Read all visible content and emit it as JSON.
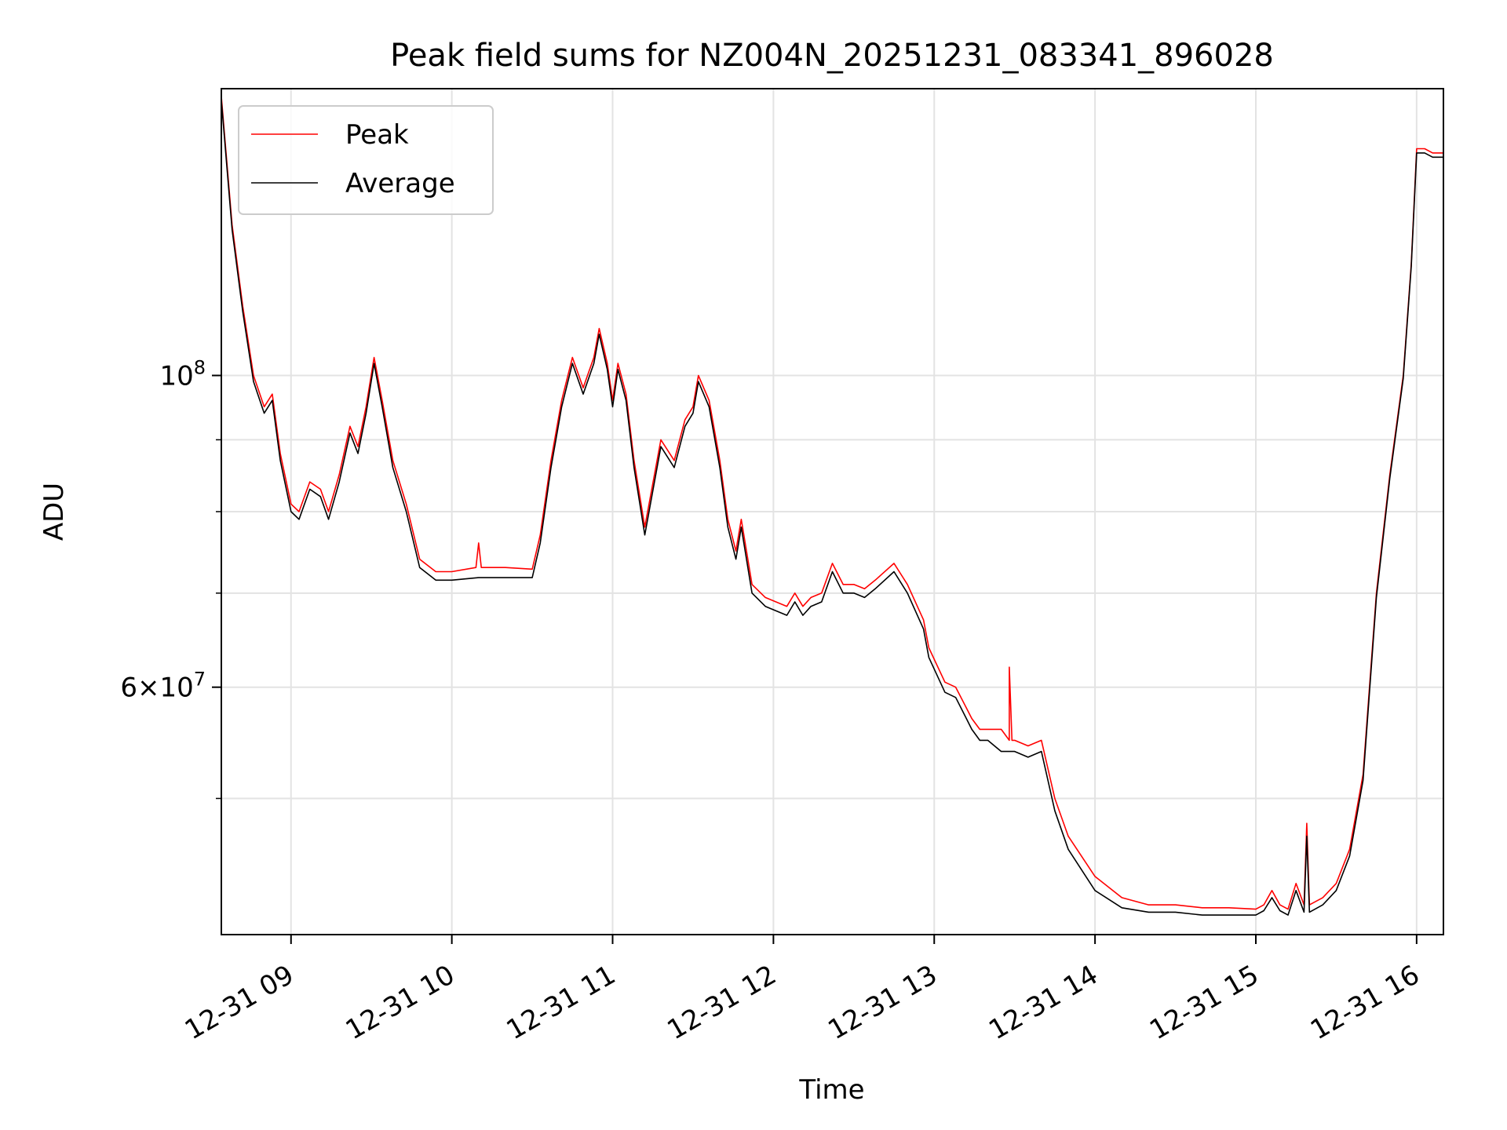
{
  "chart_data": {
    "type": "line",
    "title": "Peak field sums for NZ004N_20251231_083341_896028",
    "xlabel": "Time",
    "ylabel": "ADU",
    "y_scale": "log",
    "grid": true,
    "legend_position": "upper-left",
    "xlim": [
      "2025-12-31 08:34",
      "2025-12-31 16:10"
    ],
    "ylim": [
      40000000,
      160000000
    ],
    "x_ticks": [
      {
        "value": "2025-12-31 09:00",
        "label": "12-31 09"
      },
      {
        "value": "2025-12-31 10:00",
        "label": "12-31 10"
      },
      {
        "value": "2025-12-31 11:00",
        "label": "12-31 11"
      },
      {
        "value": "2025-12-31 12:00",
        "label": "12-31 12"
      },
      {
        "value": "2025-12-31 13:00",
        "label": "12-31 13"
      },
      {
        "value": "2025-12-31 14:00",
        "label": "12-31 14"
      },
      {
        "value": "2025-12-31 15:00",
        "label": "12-31 15"
      },
      {
        "value": "2025-12-31 16:00",
        "label": "12-31 16"
      }
    ],
    "y_major_ticks": [
      {
        "value": 100000000,
        "base": "10",
        "exp": "8",
        "mant": ""
      },
      {
        "value": 60000000,
        "base": "10",
        "exp": "7",
        "mant": "6"
      }
    ],
    "y_minor_ticks": [
      50000000,
      70000000,
      80000000,
      90000000
    ],
    "series": [
      {
        "name": "Peak",
        "color": "#ff0000",
        "x": [
          "2025-12-31 08:34",
          "2025-12-31 08:38",
          "2025-12-31 08:42",
          "2025-12-31 08:46",
          "2025-12-31 08:50",
          "2025-12-31 08:53",
          "2025-12-31 08:56",
          "2025-12-31 09:00",
          "2025-12-31 09:03",
          "2025-12-31 09:07",
          "2025-12-31 09:11",
          "2025-12-31 09:14",
          "2025-12-31 09:18",
          "2025-12-31 09:22",
          "2025-12-31 09:25",
          "2025-12-31 09:28",
          "2025-12-31 09:31",
          "2025-12-31 09:34",
          "2025-12-31 09:38",
          "2025-12-31 09:43",
          "2025-12-31 09:48",
          "2025-12-31 09:54",
          "2025-12-31 10:00",
          "2025-12-31 10:09",
          "2025-12-31 10:10",
          "2025-12-31 10:11",
          "2025-12-31 10:20",
          "2025-12-31 10:30",
          "2025-12-31 10:33",
          "2025-12-31 10:37",
          "2025-12-31 10:41",
          "2025-12-31 10:45",
          "2025-12-31 10:49",
          "2025-12-31 10:53",
          "2025-12-31 10:55",
          "2025-12-31 10:58",
          "2025-12-31 11:00",
          "2025-12-31 11:02",
          "2025-12-31 11:05",
          "2025-12-31 11:08",
          "2025-12-31 11:12",
          "2025-12-31 11:18",
          "2025-12-31 11:23",
          "2025-12-31 11:27",
          "2025-12-31 11:30",
          "2025-12-31 11:32",
          "2025-12-31 11:36",
          "2025-12-31 11:40",
          "2025-12-31 11:43",
          "2025-12-31 11:46",
          "2025-12-31 11:48",
          "2025-12-31 11:52",
          "2025-12-31 11:57",
          "2025-12-31 12:05",
          "2025-12-31 12:08",
          "2025-12-31 12:11",
          "2025-12-31 12:14",
          "2025-12-31 12:18",
          "2025-12-31 12:22",
          "2025-12-31 12:26",
          "2025-12-31 12:30",
          "2025-12-31 12:34",
          "2025-12-31 12:38",
          "2025-12-31 12:45",
          "2025-12-31 12:50",
          "2025-12-31 12:56",
          "2025-12-31 12:58",
          "2025-12-31 13:04",
          "2025-12-31 13:08",
          "2025-12-31 13:12",
          "2025-12-31 13:14",
          "2025-12-31 13:17",
          "2025-12-31 13:20",
          "2025-12-31 13:25",
          "2025-12-31 13:28",
          "2025-12-31 13:28",
          "2025-12-31 13:29",
          "2025-12-31 13:30",
          "2025-12-31 13:35",
          "2025-12-31 13:40",
          "2025-12-31 13:45",
          "2025-12-31 13:50",
          "2025-12-31 14:00",
          "2025-12-31 14:10",
          "2025-12-31 14:20",
          "2025-12-31 14:30",
          "2025-12-31 14:40",
          "2025-12-31 14:50",
          "2025-12-31 15:00",
          "2025-12-31 15:03",
          "2025-12-31 15:06",
          "2025-12-31 15:09",
          "2025-12-31 15:12",
          "2025-12-31 15:15",
          "2025-12-31 15:18",
          "2025-12-31 15:19",
          "2025-12-31 15:20",
          "2025-12-31 15:25",
          "2025-12-31 15:30",
          "2025-12-31 15:35",
          "2025-12-31 15:40",
          "2025-12-31 15:45",
          "2025-12-31 15:50",
          "2025-12-31 15:55",
          "2025-12-31 15:58",
          "2025-12-31 16:00",
          "2025-12-31 16:03",
          "2025-12-31 16:06",
          "2025-12-31 16:10"
        ],
        "y": [
          158000000,
          128000000,
          112000000,
          100000000,
          95000000,
          97000000,
          88000000,
          81000000,
          80000000,
          84000000,
          83000000,
          80000000,
          85000000,
          92000000,
          89000000,
          95000000,
          103000000,
          96000000,
          87000000,
          81000000,
          74000000,
          72500000,
          72500000,
          73000000,
          76000000,
          73000000,
          73000000,
          72800000,
          77000000,
          87000000,
          96000000,
          103000000,
          98000000,
          103000000,
          108000000,
          102000000,
          96000000,
          102000000,
          97000000,
          87000000,
          78000000,
          90000000,
          87000000,
          93000000,
          95000000,
          100000000,
          96000000,
          87000000,
          79000000,
          75000000,
          79000000,
          71000000,
          69500000,
          68500000,
          70000000,
          68500000,
          69500000,
          70000000,
          73500000,
          71000000,
          71000000,
          70500000,
          71500000,
          73500000,
          71000000,
          67000000,
          64000000,
          60500000,
          60000000,
          58000000,
          57000000,
          56000000,
          56000000,
          56000000,
          55000000,
          62000000,
          55000000,
          55000000,
          54500000,
          55000000,
          50000000,
          47000000,
          44000000,
          42500000,
          42000000,
          42000000,
          41800000,
          41800000,
          41700000,
          42000000,
          43000000,
          42000000,
          41700000,
          43500000,
          42000000,
          48000000,
          42000000,
          42500000,
          43500000,
          46000000,
          52000000,
          70000000,
          85000000,
          100000000,
          120000000,
          145000000,
          145000000,
          144000000,
          144000000
        ]
      },
      {
        "name": "Average",
        "color": "#000000",
        "x": [
          "2025-12-31 08:34",
          "2025-12-31 08:38",
          "2025-12-31 08:42",
          "2025-12-31 08:46",
          "2025-12-31 08:50",
          "2025-12-31 08:53",
          "2025-12-31 08:56",
          "2025-12-31 09:00",
          "2025-12-31 09:03",
          "2025-12-31 09:07",
          "2025-12-31 09:11",
          "2025-12-31 09:14",
          "2025-12-31 09:18",
          "2025-12-31 09:22",
          "2025-12-31 09:25",
          "2025-12-31 09:28",
          "2025-12-31 09:31",
          "2025-12-31 09:34",
          "2025-12-31 09:38",
          "2025-12-31 09:43",
          "2025-12-31 09:48",
          "2025-12-31 09:54",
          "2025-12-31 10:00",
          "2025-12-31 10:10",
          "2025-12-31 10:20",
          "2025-12-31 10:30",
          "2025-12-31 10:33",
          "2025-12-31 10:37",
          "2025-12-31 10:41",
          "2025-12-31 10:45",
          "2025-12-31 10:49",
          "2025-12-31 10:53",
          "2025-12-31 10:55",
          "2025-12-31 10:58",
          "2025-12-31 11:00",
          "2025-12-31 11:02",
          "2025-12-31 11:05",
          "2025-12-31 11:08",
          "2025-12-31 11:12",
          "2025-12-31 11:18",
          "2025-12-31 11:23",
          "2025-12-31 11:27",
          "2025-12-31 11:30",
          "2025-12-31 11:32",
          "2025-12-31 11:36",
          "2025-12-31 11:40",
          "2025-12-31 11:43",
          "2025-12-31 11:46",
          "2025-12-31 11:48",
          "2025-12-31 11:52",
          "2025-12-31 11:57",
          "2025-12-31 12:05",
          "2025-12-31 12:08",
          "2025-12-31 12:11",
          "2025-12-31 12:14",
          "2025-12-31 12:18",
          "2025-12-31 12:22",
          "2025-12-31 12:26",
          "2025-12-31 12:30",
          "2025-12-31 12:34",
          "2025-12-31 12:38",
          "2025-12-31 12:45",
          "2025-12-31 12:50",
          "2025-12-31 12:56",
          "2025-12-31 12:58",
          "2025-12-31 13:04",
          "2025-12-31 13:08",
          "2025-12-31 13:12",
          "2025-12-31 13:14",
          "2025-12-31 13:17",
          "2025-12-31 13:20",
          "2025-12-31 13:25",
          "2025-12-31 13:30",
          "2025-12-31 13:35",
          "2025-12-31 13:40",
          "2025-12-31 13:45",
          "2025-12-31 13:50",
          "2025-12-31 14:00",
          "2025-12-31 14:10",
          "2025-12-31 14:20",
          "2025-12-31 14:30",
          "2025-12-31 14:40",
          "2025-12-31 14:50",
          "2025-12-31 15:00",
          "2025-12-31 15:03",
          "2025-12-31 15:06",
          "2025-12-31 15:09",
          "2025-12-31 15:12",
          "2025-12-31 15:15",
          "2025-12-31 15:18",
          "2025-12-31 15:19",
          "2025-12-31 15:20",
          "2025-12-31 15:25",
          "2025-12-31 15:30",
          "2025-12-31 15:35",
          "2025-12-31 15:40",
          "2025-12-31 15:45",
          "2025-12-31 15:50",
          "2025-12-31 15:55",
          "2025-12-31 15:58",
          "2025-12-31 16:00",
          "2025-12-31 16:03",
          "2025-12-31 16:06",
          "2025-12-31 16:10"
        ],
        "y": [
          157000000,
          127000000,
          111000000,
          99000000,
          94000000,
          96000000,
          87000000,
          80000000,
          79000000,
          83000000,
          82000000,
          79000000,
          84000000,
          91000000,
          88000000,
          94000000,
          102000000,
          95000000,
          86000000,
          80000000,
          73000000,
          71500000,
          71500000,
          71800000,
          71800000,
          71800000,
          76000000,
          86000000,
          95000000,
          102000000,
          97000000,
          102000000,
          107000000,
          101000000,
          95000000,
          101000000,
          96000000,
          86000000,
          77000000,
          89000000,
          86000000,
          92000000,
          94000000,
          99000000,
          95000000,
          86000000,
          78000000,
          74000000,
          78000000,
          70000000,
          68500000,
          67500000,
          69000000,
          67500000,
          68500000,
          69000000,
          72500000,
          70000000,
          70000000,
          69500000,
          70500000,
          72500000,
          70000000,
          66000000,
          63000000,
          59500000,
          59000000,
          57000000,
          56000000,
          55000000,
          55000000,
          54000000,
          54000000,
          53500000,
          54000000,
          49000000,
          46000000,
          43000000,
          41800000,
          41500000,
          41500000,
          41300000,
          41300000,
          41300000,
          41600000,
          42500000,
          41600000,
          41300000,
          43000000,
          41500000,
          47000000,
          41500000,
          42000000,
          43000000,
          45500000,
          51500000,
          69500000,
          84500000,
          99500000,
          119500000,
          144000000,
          144000000,
          143000000,
          143000000
        ]
      }
    ]
  }
}
